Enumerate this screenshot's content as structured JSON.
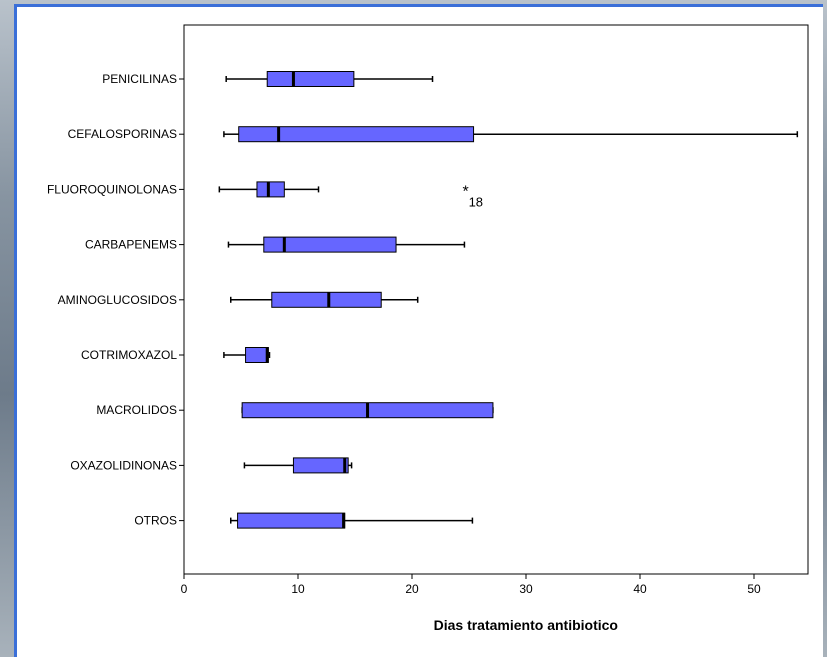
{
  "colors": {
    "box_fill": "#6666ff",
    "box_stroke": "#000000",
    "frame_border": "#3a6fd8"
  },
  "chart_data": {
    "type": "boxplot",
    "orientation": "horizontal",
    "xlabel": "Dias tratamiento antibiotico",
    "xlim": [
      0,
      54
    ],
    "xticks": [
      0,
      10,
      20,
      30,
      40,
      50
    ],
    "grid": false,
    "categories": [
      "PENICILINAS",
      "CEFALOSPORINAS",
      "FLUOROQUINOLONAS",
      "CARBAPENEMS",
      "AMINOGLUCOSIDOS",
      "COTRIMOXAZOL",
      "MACROLIDOS",
      "OXAZOLIDINONAS",
      "OTROS"
    ],
    "boxes": [
      {
        "category": "PENICILINAS",
        "min": 3.7,
        "q1": 7.3,
        "median": 9.6,
        "q3": 14.9,
        "max": 21.8
      },
      {
        "category": "CEFALOSPORINAS",
        "min": 3.5,
        "q1": 4.8,
        "median": 8.3,
        "q3": 25.4,
        "max": 53.8
      },
      {
        "category": "FLUOROQUINOLONAS",
        "min": 3.1,
        "q1": 6.4,
        "median": 7.4,
        "q3": 8.8,
        "max": 11.8
      },
      {
        "category": "CARBAPENEMS",
        "min": 3.9,
        "q1": 7.0,
        "median": 8.8,
        "q3": 18.6,
        "max": 24.6
      },
      {
        "category": "AMINOGLUCOSIDOS",
        "min": 4.1,
        "q1": 7.7,
        "median": 12.7,
        "q3": 17.3,
        "max": 20.5
      },
      {
        "category": "COTRIMOXAZOL",
        "min": 3.5,
        "q1": 5.4,
        "median": 7.3,
        "q3": 7.4,
        "max": 7.5
      },
      {
        "category": "MACROLIDOS",
        "min": 5.1,
        "q1": 5.1,
        "median": 16.1,
        "q3": 27.1,
        "max": 27.1
      },
      {
        "category": "OXAZOLIDINONAS",
        "min": 5.3,
        "q1": 9.6,
        "median": 14.1,
        "q3": 14.4,
        "max": 14.7
      },
      {
        "category": "OTROS",
        "min": 4.1,
        "q1": 4.7,
        "median": 14.0,
        "q3": 14.1,
        "max": 25.3
      }
    ],
    "outliers": [
      {
        "category": "FLUOROQUINOLONAS",
        "value": 24.7,
        "label": "18",
        "marker": "*"
      }
    ]
  }
}
